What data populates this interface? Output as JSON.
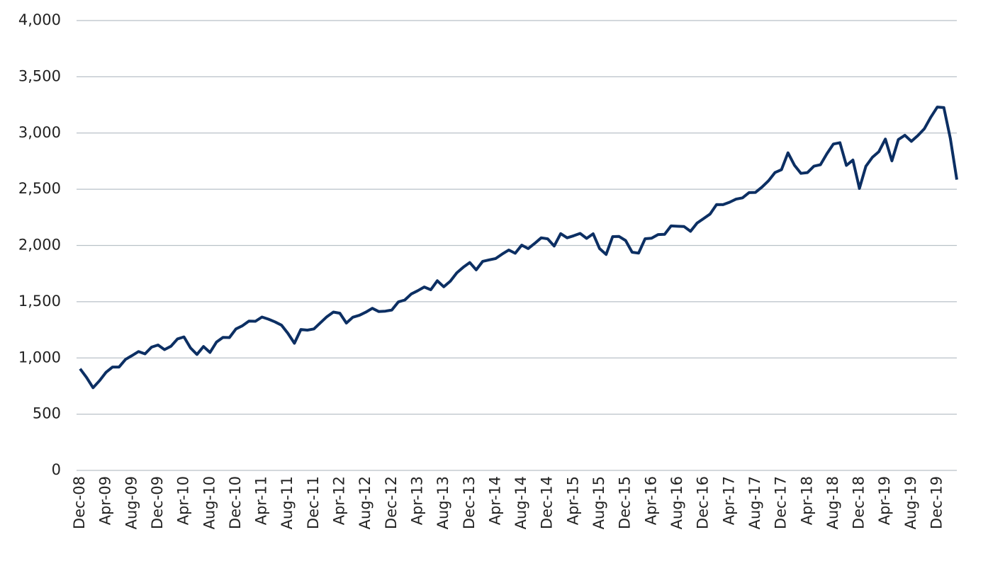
{
  "chart_data": {
    "type": "line",
    "categories": [
      "Dec-08",
      null,
      null,
      null,
      "Apr-09",
      null,
      null,
      null,
      "Aug-09",
      null,
      null,
      null,
      "Dec-09",
      null,
      null,
      null,
      "Apr-10",
      null,
      null,
      null,
      "Aug-10",
      null,
      null,
      null,
      "Dec-10",
      null,
      null,
      null,
      "Apr-11",
      null,
      null,
      null,
      "Aug-11",
      null,
      null,
      null,
      "Dec-11",
      null,
      null,
      null,
      "Apr-12",
      null,
      null,
      null,
      "Aug-12",
      null,
      null,
      null,
      "Dec-12",
      null,
      null,
      null,
      "Apr-13",
      null,
      null,
      null,
      "Aug-13",
      null,
      null,
      null,
      "Dec-13",
      null,
      null,
      null,
      "Apr-14",
      null,
      null,
      null,
      "Aug-14",
      null,
      null,
      null,
      "Dec-14",
      null,
      null,
      null,
      "Apr-15",
      null,
      null,
      null,
      "Aug-15",
      null,
      null,
      null,
      "Dec-15",
      null,
      null,
      null,
      "Apr-16",
      null,
      null,
      null,
      "Aug-16",
      null,
      null,
      null,
      "Dec-16",
      null,
      null,
      null,
      "Apr-17",
      null,
      null,
      null,
      "Aug-17",
      null,
      null,
      null,
      "Dec-17",
      null,
      null,
      null,
      "Apr-18",
      null,
      null,
      null,
      "Aug-18",
      null,
      null,
      null,
      "Dec-18",
      null,
      null,
      null,
      "Apr-19",
      null,
      null,
      null,
      "Aug-19",
      null,
      null,
      null,
      "Dec-19",
      null,
      null,
      null
    ],
    "values": [
      903,
      826,
      735,
      798,
      873,
      919,
      919,
      987,
      1021,
      1057,
      1036,
      1096,
      1115,
      1074,
      1104,
      1169,
      1187,
      1089,
      1031,
      1102,
      1049,
      1141,
      1183,
      1181,
      1258,
      1286,
      1327,
      1326,
      1364,
      1345,
      1321,
      1292,
      1219,
      1131,
      1253,
      1247,
      1258,
      1312,
      1366,
      1408,
      1398,
      1310,
      1362,
      1379,
      1407,
      1441,
      1412,
      1416,
      1426,
      1498,
      1515,
      1569,
      1598,
      1631,
      1606,
      1686,
      1633,
      1682,
      1757,
      1806,
      1848,
      1783,
      1859,
      1872,
      1884,
      1924,
      1960,
      1931,
      2003,
      1972,
      2018,
      2068,
      2059,
      1995,
      2105,
      2068,
      2086,
      2107,
      2063,
      2104,
      1972,
      1920,
      2079,
      2080,
      2044,
      1940,
      1932,
      2060,
      2065,
      2097,
      2099,
      2174,
      2171,
      2168,
      2126,
      2199,
      2239,
      2279,
      2364,
      2363,
      2384,
      2412,
      2423,
      2470,
      2472,
      2519,
      2575,
      2648,
      2674,
      2824,
      2714,
      2641,
      2648,
      2705,
      2718,
      2816,
      2902,
      2914,
      2712,
      2760,
      2507,
      2704,
      2784,
      2834,
      2946,
      2752,
      2942,
      2980,
      2926,
      2977,
      3038,
      3141,
      3231,
      3226,
      2954,
      2585
    ],
    "color": "#0c2f63",
    "ylim": [
      0,
      4000
    ],
    "yticks": [
      0,
      500,
      {
        "value": 1000,
        "label": "1,000"
      },
      {
        "value": 1500,
        "label": "1,500"
      },
      {
        "value": 2000,
        "label": "2,000"
      },
      {
        "value": 2500,
        "label": "2,500"
      },
      {
        "value": 3000,
        "label": "3,000"
      },
      {
        "value": 3500,
        "label": "3,500"
      },
      {
        "value": 4000,
        "label": "4,000"
      }
    ],
    "grid": true
  }
}
